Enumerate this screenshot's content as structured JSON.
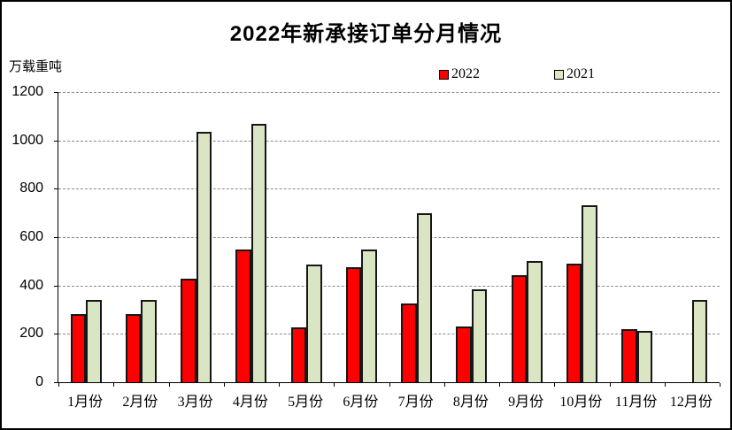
{
  "chart_data": {
    "type": "bar",
    "title": "2022年新承接订单分月情况",
    "ylabel": "万载重吨",
    "xlabel": "",
    "ylim": [
      0,
      1200
    ],
    "y_ticks": [
      0,
      200,
      400,
      600,
      800,
      1000,
      1200
    ],
    "grid": true,
    "legend_position": "top-center",
    "categories": [
      "1月份",
      "2月份",
      "3月份",
      "4月份",
      "5月份",
      "6月份",
      "7月份",
      "8月份",
      "9月份",
      "10月份",
      "11月份",
      "12月份"
    ],
    "series": [
      {
        "name": "2022",
        "color": "#FF0000",
        "values": [
          283,
          283,
          427,
          548,
          228,
          474,
          325,
          231,
          441,
          490,
          218,
          null
        ]
      },
      {
        "name": "2021",
        "color": "#D9E5C3",
        "values": [
          339,
          342,
          1037,
          1067,
          488,
          549,
          698,
          386,
          502,
          731,
          214,
          339
        ]
      }
    ]
  },
  "colors": {
    "background": "#ffffff",
    "frame_border": "#000000",
    "axis": "#000000",
    "gridline": "#8a8a8a",
    "bar_border": "#161616",
    "series_2022": "#FF0000",
    "series_2021": "#D9E5C3"
  }
}
